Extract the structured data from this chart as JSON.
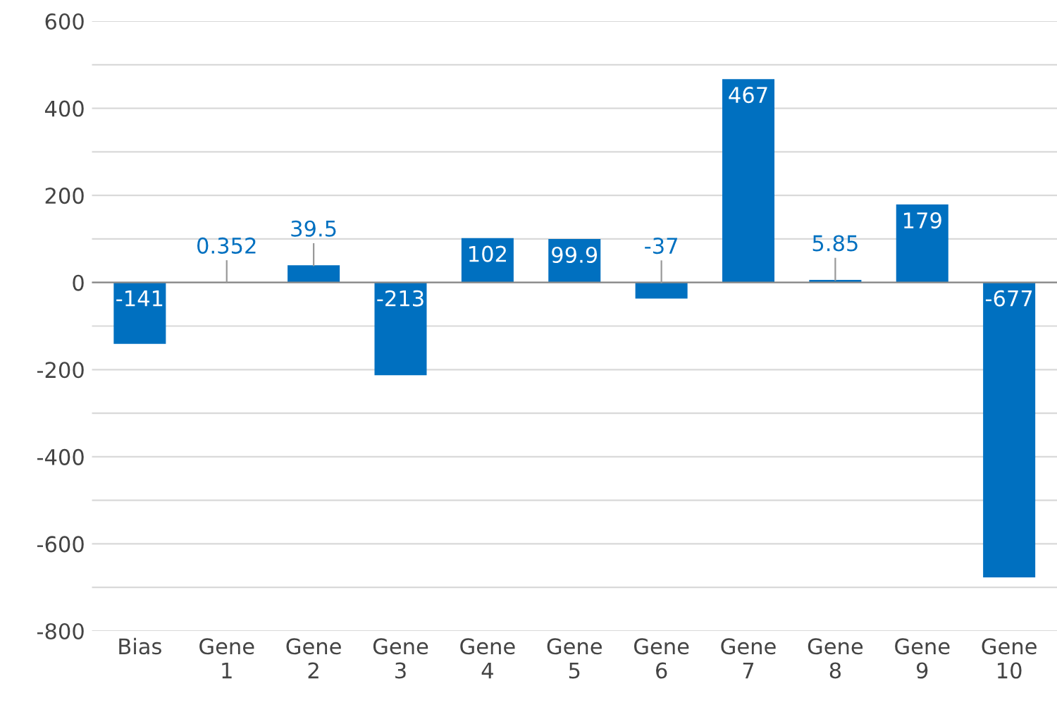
{
  "chart_data": {
    "type": "bar",
    "categories": [
      "Bias",
      "Gene 1",
      "Gene 2",
      "Gene 3",
      "Gene 4",
      "Gene 5",
      "Gene 6",
      "Gene 7",
      "Gene 8",
      "Gene 9",
      "Gene 10"
    ],
    "values": [
      -141,
      0.352,
      39.5,
      -213,
      102,
      99.9,
      -37,
      467,
      5.85,
      179,
      -677
    ],
    "color": "#0070c0",
    "data_labels": true,
    "grid": "y",
    "ylim": [
      -800,
      600
    ],
    "yticks": [
      -800,
      {
        "value": -700,
        "label": null
      },
      -600,
      {
        "value": -500,
        "label": null
      },
      -400,
      {
        "value": -300,
        "label": null
      },
      -200,
      {
        "value": -100,
        "label": null
      },
      0,
      {
        "value": 100,
        "label": null
      },
      200,
      {
        "value": 300,
        "label": null
      },
      400,
      {
        "value": 500,
        "label": null
      },
      600
    ]
  }
}
